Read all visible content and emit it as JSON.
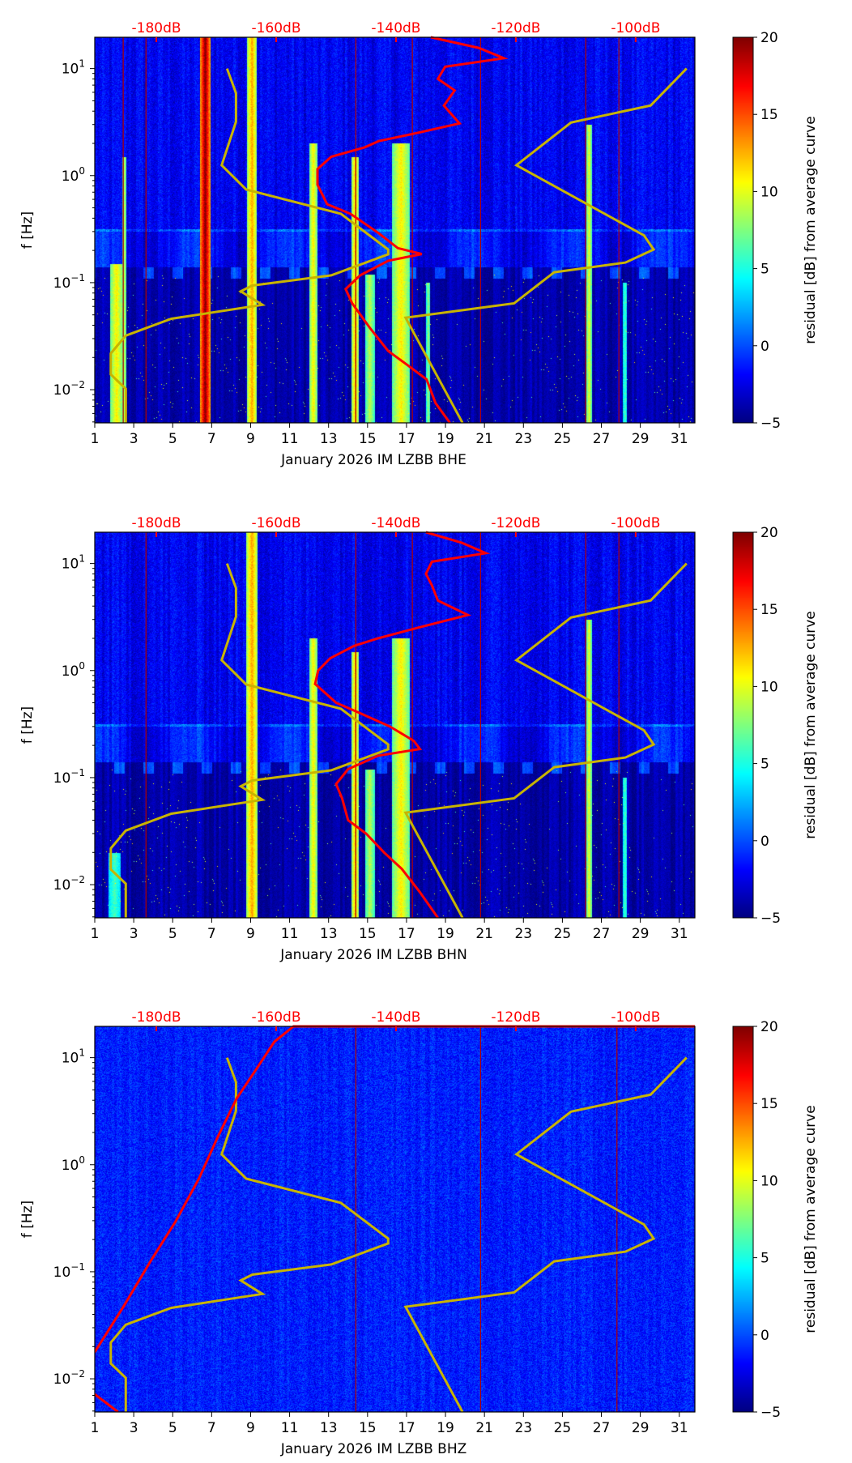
{
  "chart_data": [
    {
      "type": "heatmap",
      "xlabel": "January 2026 IM LZBB  BHE",
      "ylabel": "f [Hz]",
      "colorbar_label": "residual [dB] from average curve",
      "xlim": [
        1,
        31.8
      ],
      "ylim": [
        0.0049,
        19.6
      ],
      "yscale": "log",
      "xticks": [
        "1",
        "3",
        "5",
        "7",
        "9",
        "11",
        "13",
        "15",
        "17",
        "19",
        "21",
        "23",
        "25",
        "27",
        "29",
        "31"
      ],
      "yticks": [
        {
          "base": "10",
          "exp": "1",
          "value": 10
        },
        {
          "base": "10",
          "exp": "0",
          "value": 1
        },
        {
          "base": "10",
          "exp": "−1",
          "value": 0.1
        },
        {
          "base": "10",
          "exp": "−2",
          "value": 0.01
        }
      ],
      "top_ticks": [
        {
          "label": "-180dB",
          "db": -180
        },
        {
          "label": "-160dB",
          "db": -160
        },
        {
          "label": "-140dB",
          "db": -140
        },
        {
          "label": "-120dB",
          "db": -120
        },
        {
          "label": "-100dB",
          "db": -100
        }
      ],
      "colorbar": {
        "min": -5,
        "max": 20,
        "ticks": [
          "20",
          "15",
          "10",
          "5",
          "0",
          "−5"
        ],
        "colormap": "jet"
      },
      "colors": {
        "model_curves": "#c8b400",
        "median_curve": "#ff0000",
        "vlines": "#b00000",
        "top_labels": "#ff0000"
      },
      "style": "active",
      "bands": [
        {
          "day": 2.1,
          "w": 0.35,
          "v": 11,
          "fmax": 0.15
        },
        {
          "day": 2.5,
          "w": 0.12,
          "v": 9,
          "fmax": 1.5
        },
        {
          "day": 6.65,
          "w": 0.28,
          "v": 20,
          "fmax": 20
        },
        {
          "day": 9.05,
          "w": 0.25,
          "v": 13,
          "fmax": 20
        },
        {
          "day": 12.2,
          "w": 0.22,
          "v": 11,
          "fmax": 2
        },
        {
          "day": 14.35,
          "w": 0.2,
          "v": 12,
          "fmax": 1.5
        },
        {
          "day": 15.1,
          "w": 0.25,
          "v": 9,
          "fmax": 0.12
        },
        {
          "day": 16.7,
          "w": 0.45,
          "v": 11,
          "fmax": 2
        },
        {
          "day": 18.1,
          "w": 0.1,
          "v": 8,
          "fmax": 0.1
        },
        {
          "day": 26.35,
          "w": 0.15,
          "v": 10,
          "fmax": 3
        },
        {
          "day": 28.2,
          "w": 0.1,
          "v": 6,
          "fmax": 0.1
        }
      ],
      "vlines_days": [
        2.46,
        3.63,
        14.4,
        17.3,
        20.8,
        26.2,
        27.9
      ],
      "curves": {
        "low_noise_model": [
          [
            10,
            -168.2
          ],
          [
            5.89,
            -166.7
          ],
          [
            3.19,
            -166.7
          ],
          [
            1.25,
            -169.1
          ],
          [
            0.74,
            -165.0
          ],
          [
            0.44,
            -149.2
          ],
          [
            0.204,
            -141.3
          ],
          [
            0.184,
            -141.3
          ],
          [
            0.117,
            -150.8
          ],
          [
            0.094,
            -164.0
          ],
          [
            0.083,
            -165.9
          ],
          [
            0.062,
            -162.3
          ],
          [
            0.046,
            -177.5
          ],
          [
            0.032,
            -185.1
          ],
          [
            0.0218,
            -187.6
          ],
          [
            0.0139,
            -187.6
          ],
          [
            0.0102,
            -185.1
          ],
          [
            0.0049,
            -185.1
          ]
        ],
        "high_noise_model": [
          [
            10,
            -91.5
          ],
          [
            4.52,
            -97.5
          ],
          [
            3.13,
            -110.8
          ],
          [
            1.25,
            -119.9
          ],
          [
            0.276,
            -98.6
          ],
          [
            0.204,
            -97.0
          ],
          [
            0.154,
            -101.7
          ],
          [
            0.125,
            -113.6
          ],
          [
            0.064,
            -120.3
          ],
          [
            0.047,
            -138.4
          ],
          [
            0.0049,
            -128.9
          ]
        ],
        "median": [
          [
            19.6,
            -134.2
          ],
          [
            15.6,
            -126.2
          ],
          [
            12.5,
            -122
          ],
          [
            10.4,
            -131.8
          ],
          [
            8,
            -133
          ],
          [
            6.25,
            -130.2
          ],
          [
            4.5,
            -132
          ],
          [
            3.07,
            -129.4
          ],
          [
            2.5,
            -136.5
          ],
          [
            2.1,
            -142.9
          ],
          [
            1.84,
            -145.2
          ],
          [
            1.5,
            -150.8
          ],
          [
            1.15,
            -153.1
          ],
          [
            0.82,
            -153.1
          ],
          [
            0.54,
            -151.5
          ],
          [
            0.44,
            -147.6
          ],
          [
            0.29,
            -142.9
          ],
          [
            0.21,
            -139.7
          ],
          [
            0.185,
            -135.7
          ],
          [
            0.16,
            -141.3
          ],
          [
            0.117,
            -146.0
          ],
          [
            0.087,
            -148.4
          ],
          [
            0.064,
            -147.3
          ],
          [
            0.038,
            -144.4
          ],
          [
            0.023,
            -141.3
          ],
          [
            0.017,
            -138.1
          ],
          [
            0.0125,
            -134.9
          ],
          [
            0.0075,
            -133.4
          ],
          [
            0.0049,
            -131.0
          ]
        ]
      }
    },
    {
      "type": "heatmap",
      "xlabel": "January 2026 IM LZBB  BHN",
      "ylabel": "f [Hz]",
      "colorbar_label": "residual [dB] from average curve",
      "xlim": [
        1,
        31.8
      ],
      "ylim": [
        0.0049,
        19.6
      ],
      "yscale": "log",
      "xticks": [
        "1",
        "3",
        "5",
        "7",
        "9",
        "11",
        "13",
        "15",
        "17",
        "19",
        "21",
        "23",
        "25",
        "27",
        "29",
        "31"
      ],
      "yticks": [
        {
          "base": "10",
          "exp": "1",
          "value": 10
        },
        {
          "base": "10",
          "exp": "0",
          "value": 1
        },
        {
          "base": "10",
          "exp": "−1",
          "value": 0.1
        },
        {
          "base": "10",
          "exp": "−2",
          "value": 0.01
        }
      ],
      "top_ticks": [
        {
          "label": "-180dB",
          "db": -180
        },
        {
          "label": "-160dB",
          "db": -160
        },
        {
          "label": "-140dB",
          "db": -140
        },
        {
          "label": "-120dB",
          "db": -120
        },
        {
          "label": "-100dB",
          "db": -100
        }
      ],
      "colorbar": {
        "min": -5,
        "max": 20,
        "ticks": [
          "20",
          "15",
          "10",
          "5",
          "0",
          "−5"
        ],
        "colormap": "jet"
      },
      "colors": {
        "model_curves": "#c8b400",
        "median_curve": "#ff0000",
        "vlines": "#b00000",
        "top_labels": "#ff0000"
      },
      "style": "active",
      "bands": [
        {
          "day": 2.0,
          "w": 0.3,
          "v": 6,
          "fmax": 0.02
        },
        {
          "day": 9.05,
          "w": 0.3,
          "v": 13,
          "fmax": 20
        },
        {
          "day": 12.2,
          "w": 0.22,
          "v": 11,
          "fmax": 2
        },
        {
          "day": 14.35,
          "w": 0.2,
          "v": 12,
          "fmax": 1.5
        },
        {
          "day": 15.1,
          "w": 0.25,
          "v": 9,
          "fmax": 0.12
        },
        {
          "day": 16.7,
          "w": 0.45,
          "v": 11,
          "fmax": 2
        },
        {
          "day": 26.35,
          "w": 0.15,
          "v": 10,
          "fmax": 3
        },
        {
          "day": 28.2,
          "w": 0.1,
          "v": 6,
          "fmax": 0.1
        }
      ],
      "vlines_days": [
        3.63,
        14.4,
        17.3,
        20.8,
        26.2,
        27.9
      ],
      "curves": {
        "low_noise_model": [
          [
            10,
            -168.2
          ],
          [
            5.89,
            -166.7
          ],
          [
            3.19,
            -166.7
          ],
          [
            1.25,
            -169.1
          ],
          [
            0.74,
            -165.0
          ],
          [
            0.44,
            -149.2
          ],
          [
            0.204,
            -141.3
          ],
          [
            0.184,
            -141.3
          ],
          [
            0.117,
            -150.8
          ],
          [
            0.094,
            -164.0
          ],
          [
            0.083,
            -165.9
          ],
          [
            0.062,
            -162.3
          ],
          [
            0.046,
            -177.5
          ],
          [
            0.032,
            -185.1
          ],
          [
            0.0218,
            -187.6
          ],
          [
            0.0139,
            -187.6
          ],
          [
            0.0102,
            -185.1
          ],
          [
            0.0049,
            -185.1
          ]
        ],
        "high_noise_model": [
          [
            10,
            -91.5
          ],
          [
            4.52,
            -97.5
          ],
          [
            3.13,
            -110.8
          ],
          [
            1.25,
            -119.9
          ],
          [
            0.276,
            -98.6
          ],
          [
            0.204,
            -97.0
          ],
          [
            0.154,
            -101.7
          ],
          [
            0.125,
            -113.6
          ],
          [
            0.064,
            -120.3
          ],
          [
            0.047,
            -138.4
          ],
          [
            0.0049,
            -128.9
          ]
        ],
        "median": [
          [
            19.6,
            -135
          ],
          [
            15.6,
            -129
          ],
          [
            12.5,
            -125
          ],
          [
            10.4,
            -134
          ],
          [
            8,
            -135
          ],
          [
            6.25,
            -134
          ],
          [
            4.5,
            -133
          ],
          [
            3.3,
            -128
          ],
          [
            2.5,
            -136.5
          ],
          [
            2.0,
            -143
          ],
          [
            1.7,
            -147
          ],
          [
            1.3,
            -151
          ],
          [
            1.0,
            -153
          ],
          [
            0.75,
            -153.5
          ],
          [
            0.5,
            -150
          ],
          [
            0.4,
            -146
          ],
          [
            0.3,
            -141
          ],
          [
            0.22,
            -137
          ],
          [
            0.185,
            -136
          ],
          [
            0.16,
            -143
          ],
          [
            0.12,
            -148
          ],
          [
            0.087,
            -150
          ],
          [
            0.064,
            -149
          ],
          [
            0.04,
            -148
          ],
          [
            0.03,
            -145
          ],
          [
            0.02,
            -142
          ],
          [
            0.014,
            -139
          ],
          [
            0.0085,
            -136
          ],
          [
            0.0049,
            -133
          ]
        ]
      }
    },
    {
      "type": "heatmap",
      "xlabel": "January 2026 IM LZBB  BHZ",
      "ylabel": "f [Hz]",
      "colorbar_label": "residual [dB] from average curve",
      "xlim": [
        1,
        31.8
      ],
      "ylim": [
        0.0049,
        19.6
      ],
      "yscale": "log",
      "xticks": [
        "1",
        "3",
        "5",
        "7",
        "9",
        "11",
        "13",
        "15",
        "17",
        "19",
        "21",
        "23",
        "25",
        "27",
        "29",
        "31"
      ],
      "yticks": [
        {
          "base": "10",
          "exp": "1",
          "value": 10
        },
        {
          "base": "10",
          "exp": "0",
          "value": 1
        },
        {
          "base": "10",
          "exp": "−1",
          "value": 0.1
        },
        {
          "base": "10",
          "exp": "−2",
          "value": 0.01
        }
      ],
      "top_ticks": [
        {
          "label": "-180dB",
          "db": -180
        },
        {
          "label": "-160dB",
          "db": -160
        },
        {
          "label": "-140dB",
          "db": -140
        },
        {
          "label": "-120dB",
          "db": -120
        },
        {
          "label": "-100dB",
          "db": -100
        }
      ],
      "colorbar": {
        "min": -5,
        "max": 20,
        "ticks": [
          "20",
          "15",
          "10",
          "5",
          "0",
          "−5"
        ],
        "colormap": "jet"
      },
      "colors": {
        "model_curves": "#c8b400",
        "median_curve": "#ff0000",
        "vlines": "#b00000",
        "top_labels": "#ff0000"
      },
      "style": "flat",
      "bands": [],
      "vlines_days": [
        14.4,
        20.8,
        27.8
      ],
      "curves": {
        "low_noise_model": [
          [
            10,
            -168.2
          ],
          [
            5.89,
            -166.7
          ],
          [
            3.19,
            -166.7
          ],
          [
            1.25,
            -169.1
          ],
          [
            0.74,
            -165.0
          ],
          [
            0.44,
            -149.2
          ],
          [
            0.204,
            -141.3
          ],
          [
            0.184,
            -141.3
          ],
          [
            0.117,
            -150.8
          ],
          [
            0.094,
            -164.0
          ],
          [
            0.083,
            -165.9
          ],
          [
            0.062,
            -162.3
          ],
          [
            0.046,
            -177.5
          ],
          [
            0.032,
            -185.1
          ],
          [
            0.0218,
            -187.6
          ],
          [
            0.0139,
            -187.6
          ],
          [
            0.0102,
            -185.1
          ],
          [
            0.0049,
            -185.1
          ]
        ],
        "high_noise_model": [
          [
            10,
            -91.5
          ],
          [
            4.52,
            -97.5
          ],
          [
            3.13,
            -110.8
          ],
          [
            1.25,
            -119.9
          ],
          [
            0.276,
            -98.6
          ],
          [
            0.204,
            -97.0
          ],
          [
            0.154,
            -101.7
          ],
          [
            0.125,
            -113.6
          ],
          [
            0.064,
            -120.3
          ],
          [
            0.047,
            -138.4
          ],
          [
            0.0049,
            -128.9
          ]
        ],
        "median": [
          [
            0.0177,
            -190.3
          ],
          [
            0.047,
            -185.5
          ],
          [
            0.13,
            -180.8
          ],
          [
            0.294,
            -176.8
          ],
          [
            0.74,
            -172.9
          ],
          [
            1.84,
            -169.7
          ],
          [
            4.16,
            -166.6
          ],
          [
            7.67,
            -163.4
          ],
          [
            14.1,
            -160.3
          ],
          [
            19.6,
            -157.1
          ],
          [
            19.6,
            -90
          ]
        ],
        "median_tail": [
          [
            0.0072,
            -190.3
          ],
          [
            0.0049,
            -186.4
          ]
        ]
      }
    }
  ]
}
